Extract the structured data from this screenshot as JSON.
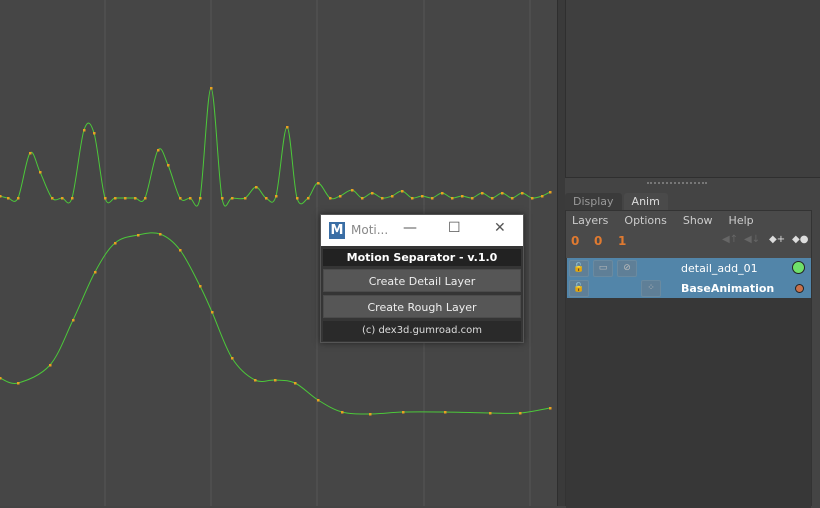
{
  "graph_editor": {
    "curve_color": "#4cc83a",
    "key_color": "#e8a020"
  },
  "dialog": {
    "window_title": "Moti...",
    "logo": "M",
    "title": "Motion Separator  -  v.1.0",
    "buttons": [
      "Create Detail Layer",
      "Create Rough Layer"
    ],
    "credit": "(c) dex3d.gumroad.com"
  },
  "layer_editor": {
    "tabs": [
      "Display",
      "Anim"
    ],
    "active_tab": "Anim",
    "menu": [
      "Layers",
      "Options",
      "Show",
      "Help"
    ],
    "toolbar": [
      "0",
      "0",
      "1"
    ],
    "layers": [
      {
        "name": "detail_add_01",
        "color": "#6fe06a",
        "selected": true
      },
      {
        "name": "BaseAnimation",
        "color": "#c8704a",
        "selected": true
      }
    ]
  }
}
